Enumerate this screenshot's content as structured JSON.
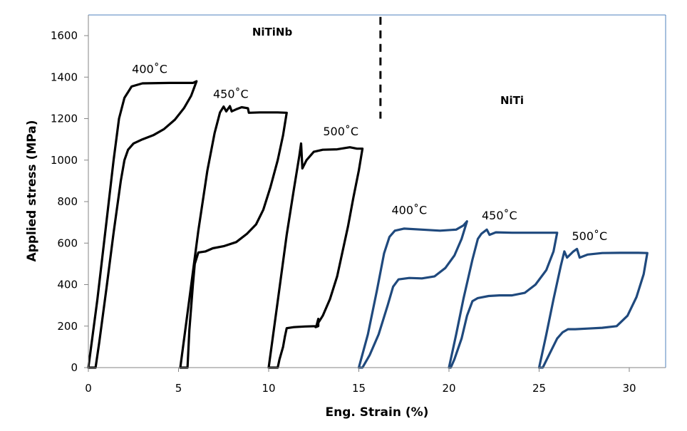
{
  "chart_data": {
    "type": "line",
    "title": "",
    "xlabel": "Eng. Strain (%)",
    "ylabel": "Applied stress (MPa)",
    "xlim": [
      0,
      32
    ],
    "ylim": [
      0,
      1700
    ],
    "xticks": [
      0,
      5,
      10,
      15,
      20,
      25,
      30
    ],
    "yticks": [
      0,
      200,
      400,
      600,
      800,
      1000,
      1200,
      1400,
      1600
    ],
    "grid": false,
    "legend": "none",
    "colors": {
      "NiTiNb": "#000000",
      "NiTi": "#1F497D",
      "frame": "#4F81BD",
      "axis": "#868686"
    },
    "annotations": [
      {
        "text": "NiTiNb",
        "x": 10.2,
        "y": 1600,
        "bold": true
      },
      {
        "text": "NiTi",
        "x": 23.5,
        "y": 1270,
        "bold": true
      },
      {
        "text": "400˚C",
        "x": 3.4,
        "y": 1420
      },
      {
        "text": "450˚C",
        "x": 7.9,
        "y": 1300
      },
      {
        "text": "500˚C",
        "x": 14.0,
        "y": 1120
      },
      {
        "text": "400˚C",
        "x": 17.8,
        "y": 740
      },
      {
        "text": "450˚C",
        "x": 22.8,
        "y": 715
      },
      {
        "text": "500˚C",
        "x": 27.8,
        "y": 615
      }
    ],
    "divider": {
      "x": 16.2,
      "y_from": 1690,
      "y_to": 1200,
      "style": "dashed"
    },
    "series": [
      {
        "name": "NiTiNb 400˚C",
        "group": "NiTiNb",
        "points": [
          [
            0,
            0
          ],
          [
            0.5,
            330
          ],
          [
            1.0,
            700
          ],
          [
            1.4,
            1000
          ],
          [
            1.7,
            1200
          ],
          [
            2.0,
            1300
          ],
          [
            2.4,
            1355
          ],
          [
            3.0,
            1370
          ],
          [
            4.5,
            1372
          ],
          [
            5.8,
            1372
          ],
          [
            6.0,
            1380
          ],
          [
            5.7,
            1310
          ],
          [
            5.3,
            1250
          ],
          [
            4.8,
            1195
          ],
          [
            4.2,
            1150
          ],
          [
            3.6,
            1120
          ],
          [
            3.0,
            1100
          ],
          [
            2.5,
            1080
          ],
          [
            2.2,
            1050
          ],
          [
            2.0,
            1000
          ],
          [
            1.8,
            900
          ],
          [
            1.4,
            650
          ],
          [
            1.0,
            380
          ],
          [
            0.6,
            120
          ],
          [
            0.4,
            0
          ],
          [
            0,
            0
          ]
        ]
      },
      {
        "name": "NiTiNb 450˚C",
        "group": "NiTiNb",
        "points": [
          [
            5.1,
            0
          ],
          [
            5.6,
            330
          ],
          [
            6.1,
            660
          ],
          [
            6.6,
            950
          ],
          [
            7.0,
            1130
          ],
          [
            7.3,
            1230
          ],
          [
            7.5,
            1258
          ],
          [
            7.65,
            1235
          ],
          [
            7.85,
            1260
          ],
          [
            7.95,
            1235
          ],
          [
            8.2,
            1245
          ],
          [
            8.5,
            1255
          ],
          [
            8.85,
            1250
          ],
          [
            8.9,
            1228
          ],
          [
            9.5,
            1230
          ],
          [
            10.5,
            1230
          ],
          [
            11.0,
            1228
          ],
          [
            10.8,
            1120
          ],
          [
            10.5,
            1000
          ],
          [
            10.1,
            870
          ],
          [
            9.7,
            760
          ],
          [
            9.3,
            690
          ],
          [
            8.8,
            645
          ],
          [
            8.2,
            605
          ],
          [
            7.5,
            585
          ],
          [
            6.9,
            575
          ],
          [
            6.5,
            560
          ],
          [
            6.1,
            555
          ],
          [
            5.9,
            500
          ],
          [
            5.8,
            400
          ],
          [
            5.6,
            180
          ],
          [
            5.5,
            0
          ],
          [
            5.1,
            0
          ]
        ]
      },
      {
        "name": "NiTiNb 500˚C",
        "group": "NiTiNb",
        "points": [
          [
            10.0,
            0
          ],
          [
            10.5,
            320
          ],
          [
            11.0,
            640
          ],
          [
            11.4,
            860
          ],
          [
            11.7,
            1020
          ],
          [
            11.8,
            1080
          ],
          [
            11.87,
            960
          ],
          [
            12.1,
            1000
          ],
          [
            12.5,
            1040
          ],
          [
            13.0,
            1050
          ],
          [
            13.8,
            1052
          ],
          [
            14.5,
            1062
          ],
          [
            14.9,
            1055
          ],
          [
            15.2,
            1055
          ],
          [
            15.0,
            950
          ],
          [
            14.7,
            820
          ],
          [
            14.4,
            680
          ],
          [
            14.1,
            560
          ],
          [
            13.8,
            440
          ],
          [
            13.4,
            330
          ],
          [
            13.0,
            250
          ],
          [
            12.6,
            195
          ],
          [
            12.75,
            200
          ],
          [
            12.75,
            235
          ],
          [
            12.65,
            200
          ],
          [
            12.0,
            198
          ],
          [
            11.4,
            195
          ],
          [
            11.0,
            190
          ],
          [
            10.9,
            150
          ],
          [
            10.8,
            100
          ],
          [
            10.6,
            40
          ],
          [
            10.5,
            0
          ],
          [
            10.0,
            0
          ]
        ]
      },
      {
        "name": "NiTi 400˚C",
        "group": "NiTi",
        "points": [
          [
            15.0,
            0
          ],
          [
            15.5,
            160
          ],
          [
            16.0,
            370
          ],
          [
            16.4,
            550
          ],
          [
            16.7,
            630
          ],
          [
            17.0,
            660
          ],
          [
            17.5,
            670
          ],
          [
            18.5,
            665
          ],
          [
            19.5,
            660
          ],
          [
            20.4,
            665
          ],
          [
            20.8,
            685
          ],
          [
            21.0,
            705
          ],
          [
            20.7,
            620
          ],
          [
            20.3,
            540
          ],
          [
            19.8,
            480
          ],
          [
            19.2,
            440
          ],
          [
            18.5,
            430
          ],
          [
            17.8,
            432
          ],
          [
            17.2,
            425
          ],
          [
            16.9,
            390
          ],
          [
            16.6,
            300
          ],
          [
            16.1,
            160
          ],
          [
            15.6,
            60
          ],
          [
            15.2,
            0
          ],
          [
            15.0,
            0
          ]
        ]
      },
      {
        "name": "NiTi 450˚C",
        "group": "NiTi",
        "points": [
          [
            20.0,
            0
          ],
          [
            20.4,
            160
          ],
          [
            20.8,
            330
          ],
          [
            21.3,
            520
          ],
          [
            21.6,
            620
          ],
          [
            21.8,
            645
          ],
          [
            22.1,
            665
          ],
          [
            22.25,
            640
          ],
          [
            22.6,
            652
          ],
          [
            23.5,
            650
          ],
          [
            25.0,
            650
          ],
          [
            26.0,
            650
          ],
          [
            25.8,
            560
          ],
          [
            25.4,
            470
          ],
          [
            24.8,
            400
          ],
          [
            24.2,
            360
          ],
          [
            23.5,
            348
          ],
          [
            22.8,
            348
          ],
          [
            22.2,
            345
          ],
          [
            21.6,
            335
          ],
          [
            21.3,
            320
          ],
          [
            21.0,
            250
          ],
          [
            20.7,
            140
          ],
          [
            20.3,
            40
          ],
          [
            20.1,
            0
          ],
          [
            20.0,
            0
          ]
        ]
      },
      {
        "name": "NiTi 500˚C",
        "group": "NiTi",
        "points": [
          [
            25.0,
            0
          ],
          [
            25.4,
            160
          ],
          [
            25.8,
            330
          ],
          [
            26.2,
            490
          ],
          [
            26.4,
            560
          ],
          [
            26.55,
            530
          ],
          [
            26.9,
            560
          ],
          [
            27.1,
            572
          ],
          [
            27.25,
            530
          ],
          [
            27.7,
            545
          ],
          [
            28.5,
            552
          ],
          [
            29.5,
            553
          ],
          [
            30.5,
            553
          ],
          [
            31.0,
            552
          ],
          [
            30.8,
            450
          ],
          [
            30.4,
            340
          ],
          [
            29.9,
            250
          ],
          [
            29.3,
            200
          ],
          [
            28.5,
            192
          ],
          [
            27.7,
            188
          ],
          [
            27.0,
            185
          ],
          [
            26.6,
            185
          ],
          [
            26.3,
            170
          ],
          [
            26.0,
            140
          ],
          [
            25.6,
            70
          ],
          [
            25.2,
            0
          ],
          [
            25.0,
            0
          ]
        ]
      }
    ]
  }
}
